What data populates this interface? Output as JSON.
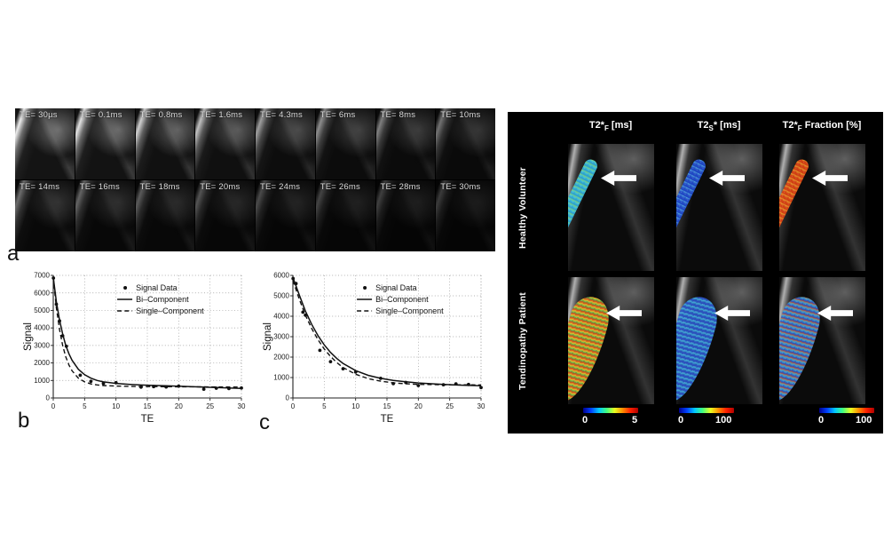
{
  "figure": {
    "panel_a": {
      "label": "a",
      "te_labels": [
        "TE= 30µs",
        "TE= 0.1ms",
        "TE= 0.8ms",
        "TE= 1.6ms",
        "TE= 4.3ms",
        "TE= 6ms",
        "TE= 8ms",
        "TE= 10ms",
        "TE= 14ms",
        "TE= 16ms",
        "TE= 18ms",
        "TE= 20ms",
        "TE= 24ms",
        "TE= 26ms",
        "TE= 28ms",
        "TE= 30ms"
      ]
    },
    "panel_b": {
      "label": "b"
    },
    "panel_c": {
      "label": "c"
    },
    "right_panel": {
      "column_headers": [
        {
          "name": "t2star-f-ms",
          "parts": [
            {
              "t": "T2*"
            },
            {
              "t": "F",
              "sub": true
            },
            {
              "t": " [ms]"
            }
          ]
        },
        {
          "name": "t2star-s-ms",
          "parts": [
            {
              "t": "T2"
            },
            {
              "t": "S",
              "sub": true
            },
            {
              "t": "* [ms]"
            }
          ]
        },
        {
          "name": "t2star-f-fraction",
          "parts": [
            {
              "t": "T2*"
            },
            {
              "t": "F",
              "sub": true
            },
            {
              "t": " Fraction [%]"
            }
          ]
        }
      ],
      "row_labels": [
        "Healthy Volunteer",
        "Tendinopathy Patient"
      ],
      "colorbars": [
        {
          "min": "0",
          "max": "5"
        },
        {
          "min": "0",
          "max": "100"
        },
        {
          "min": "0",
          "max": "100"
        }
      ],
      "jet_gradient": [
        "#000090",
        "#0040ff",
        "#00c8ff",
        "#40ff80",
        "#e8ff20",
        "#ff9000",
        "#ff2000",
        "#b00000"
      ],
      "cells": [
        {
          "row": "healthy",
          "map": "t2star-f",
          "overlay_colors": [
            "#a8d84a",
            "#45cede",
            "#2fa6d8",
            "#35b8cf"
          ]
        },
        {
          "row": "healthy",
          "map": "t2star-s",
          "overlay_colors": [
            "#6ad0e8",
            "#2a5ad4",
            "#1e46c8",
            "#2858d8"
          ]
        },
        {
          "row": "healthy",
          "map": "t2star-fraction",
          "overlay_colors": [
            "#f0d438",
            "#e04a18",
            "#d63c10",
            "#ef7f2a"
          ]
        },
        {
          "row": "patient",
          "map": "t2star-f",
          "overlay_colors": [
            "#e05020",
            "#f0c830",
            "#58b848",
            "#d84818",
            "#f0a028"
          ]
        },
        {
          "row": "patient",
          "map": "t2star-s",
          "overlay_colors": [
            "#3a68d8",
            "#2848c0",
            "#44b8e0",
            "#2040b0"
          ]
        },
        {
          "row": "patient",
          "map": "t2star-fraction",
          "overlay_colors": [
            "#e06828",
            "#40a8d8",
            "#2858c8",
            "#e04818"
          ]
        }
      ]
    }
  },
  "chart_data": [
    {
      "id": "b",
      "type": "scatter",
      "title": "",
      "xlabel": "TE",
      "ylabel": "Signal",
      "xlim": [
        0,
        30
      ],
      "ylim": [
        0,
        7000
      ],
      "xticks": [
        0,
        5,
        10,
        15,
        20,
        25,
        30
      ],
      "yticks": [
        0,
        1000,
        2000,
        3000,
        4000,
        5000,
        6000,
        7000
      ],
      "grid": "dotted",
      "legend_position": "upper-center-right",
      "legend": [
        "Signal Data",
        "Bi–Component",
        "Single–Component"
      ],
      "signal_points": [
        [
          0.03,
          6850
        ],
        [
          0.5,
          5350
        ],
        [
          1,
          4400
        ],
        [
          1.5,
          3550
        ],
        [
          2.1,
          2950
        ],
        [
          4.3,
          1300
        ],
        [
          6,
          950
        ],
        [
          8,
          830
        ],
        [
          10,
          870
        ],
        [
          14,
          620
        ],
        [
          16,
          650
        ],
        [
          18,
          630
        ],
        [
          20,
          680
        ],
        [
          24,
          500
        ],
        [
          26,
          560
        ],
        [
          28,
          540
        ],
        [
          30,
          570
        ]
      ],
      "bi_fit": [
        [
          0,
          6900
        ],
        [
          0.5,
          5500
        ],
        [
          1,
          4450
        ],
        [
          1.5,
          3650
        ],
        [
          2,
          3000
        ],
        [
          2.5,
          2520
        ],
        [
          3,
          2150
        ],
        [
          4,
          1640
        ],
        [
          5,
          1330
        ],
        [
          6,
          1130
        ],
        [
          7,
          1000
        ],
        [
          8,
          920
        ],
        [
          10,
          830
        ],
        [
          12,
          780
        ],
        [
          14,
          740
        ],
        [
          16,
          715
        ],
        [
          18,
          695
        ],
        [
          20,
          675
        ],
        [
          24,
          625
        ],
        [
          27,
          585
        ],
        [
          30,
          545
        ]
      ],
      "single_fit": [
        [
          0,
          6900
        ],
        [
          0.5,
          5150
        ],
        [
          1,
          3900
        ],
        [
          1.5,
          3000
        ],
        [
          2,
          2350
        ],
        [
          2.5,
          1880
        ],
        [
          3,
          1550
        ],
        [
          4,
          1130
        ],
        [
          5,
          920
        ],
        [
          6,
          800
        ],
        [
          7,
          745
        ],
        [
          8,
          710
        ],
        [
          10,
          680
        ],
        [
          12,
          665
        ],
        [
          14,
          655
        ],
        [
          16,
          650
        ],
        [
          18,
          645
        ],
        [
          20,
          640
        ],
        [
          24,
          632
        ],
        [
          27,
          627
        ],
        [
          30,
          622
        ]
      ]
    },
    {
      "id": "c",
      "type": "scatter",
      "title": "",
      "xlabel": "TE",
      "ylabel": "Signal",
      "xlim": [
        0,
        30
      ],
      "ylim": [
        0,
        6000
      ],
      "xticks": [
        0,
        5,
        10,
        15,
        20,
        25,
        30
      ],
      "yticks": [
        0,
        1000,
        2000,
        3000,
        4000,
        5000,
        6000
      ],
      "grid": "dotted",
      "legend_position": "upper-center-right",
      "legend": [
        "Signal Data",
        "Bi–Component",
        "Single–Component"
      ],
      "signal_points": [
        [
          0.03,
          5850
        ],
        [
          0.5,
          5600
        ],
        [
          1.6,
          4200
        ],
        [
          2,
          4050
        ],
        [
          4.3,
          2330
        ],
        [
          6,
          1780
        ],
        [
          8,
          1430
        ],
        [
          10,
          1270
        ],
        [
          14,
          960
        ],
        [
          16,
          700
        ],
        [
          18,
          760
        ],
        [
          20,
          610
        ],
        [
          24,
          650
        ],
        [
          26,
          690
        ],
        [
          28,
          660
        ],
        [
          30,
          510
        ]
      ],
      "bi_fit": [
        [
          0,
          5900
        ],
        [
          1,
          5050
        ],
        [
          2,
          4250
        ],
        [
          3,
          3600
        ],
        [
          4,
          3050
        ],
        [
          5,
          2600
        ],
        [
          6,
          2230
        ],
        [
          7,
          1930
        ],
        [
          8,
          1690
        ],
        [
          10,
          1340
        ],
        [
          12,
          1110
        ],
        [
          14,
          960
        ],
        [
          16,
          860
        ],
        [
          18,
          790
        ],
        [
          20,
          735
        ],
        [
          24,
          660
        ],
        [
          27,
          625
        ],
        [
          30,
          600
        ]
      ],
      "single_fit": [
        [
          0,
          5750
        ],
        [
          1,
          4850
        ],
        [
          2,
          4050
        ],
        [
          3,
          3400
        ],
        [
          4,
          2850
        ],
        [
          5,
          2400
        ],
        [
          6,
          2030
        ],
        [
          7,
          1730
        ],
        [
          8,
          1490
        ],
        [
          10,
          1160
        ],
        [
          12,
          950
        ],
        [
          14,
          820
        ],
        [
          16,
          740
        ],
        [
          18,
          695
        ],
        [
          20,
          665
        ],
        [
          24,
          648
        ],
        [
          27,
          642
        ],
        [
          30,
          640
        ]
      ]
    }
  ]
}
